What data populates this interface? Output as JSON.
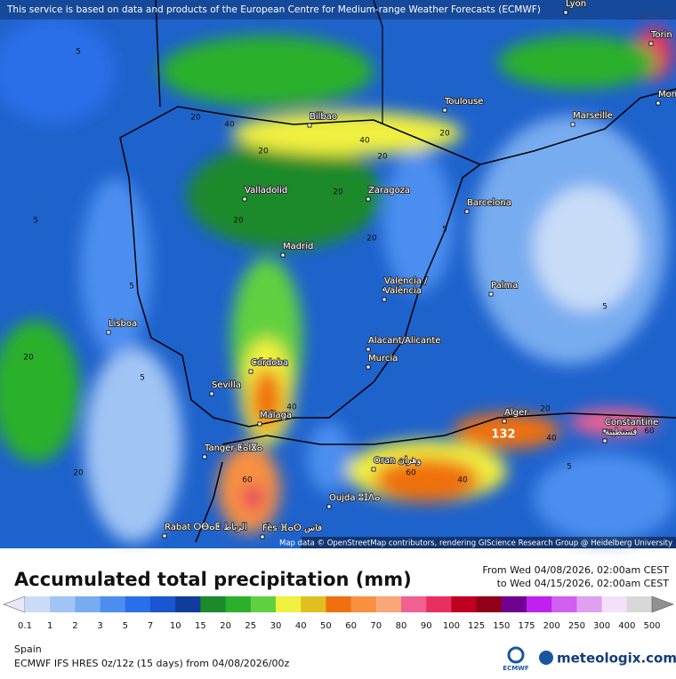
{
  "header": {
    "notice": "This service is based on data and products of the European Centre for Medium-range Weather Forecasts (ECMWF)"
  },
  "map": {
    "cities": [
      "Lyon",
      "Torin",
      "Monaco",
      "Toulouse",
      "Marseille",
      "Bilbao",
      "Valladolid",
      "Zaragoza",
      "Barcelona",
      "Madrid",
      "Valencia /",
      "València",
      "Palma",
      "Lisboa",
      "Alacant/Alicante",
      "Murcia",
      "Córdoba",
      "Sevilla",
      "Málaga",
      "Alger",
      "Constantine",
      "قسنطينة",
      "Tanger ⵟⴰⵏⴵⴰ",
      "Oran وهران",
      "Oujda ⵓⵊⴷⴰ",
      "Rabat ⵔⴱⴰⵟ الرباط",
      "Fès ⴼⴰⵙ فاس"
    ],
    "contour_labels": [
      5,
      5,
      5,
      5,
      5,
      5,
      20,
      20,
      20,
      20,
      20,
      20,
      20,
      40,
      40,
      40,
      40,
      40,
      60,
      60,
      20,
      20,
      5,
      20,
      60
    ],
    "max_label": 132,
    "attribution": "Map data © OpenStreetMap contributors, rendering GIScience Research Group @ Heidelberg University"
  },
  "legend": {
    "title": "Accumulated total precipitation (mm)",
    "from": "From Wed 04/08/2026, 02:00am CEST",
    "to": "to Wed 04/15/2026, 02:00am CEST",
    "labels": [
      0.1,
      1,
      2,
      3,
      5,
      7,
      10,
      15,
      20,
      25,
      30,
      40,
      50,
      60,
      70,
      80,
      90,
      100,
      125,
      150,
      175,
      200,
      250,
      300,
      400,
      500
    ],
    "colors": [
      "#e8e8f8",
      "#c8dcf8",
      "#a0c4f4",
      "#78acf0",
      "#4c8ef0",
      "#2a6ee8",
      "#1a56d0",
      "#103c9c",
      "#1a8a2a",
      "#2cb02c",
      "#60d040",
      "#f0f040",
      "#e0c020",
      "#f07010",
      "#f89040",
      "#f8a878",
      "#f06090",
      "#e83060",
      "#c00020",
      "#900018",
      "#700090",
      "#c020f0",
      "#d060f0",
      "#e0a0f0",
      "#f4e0f8",
      "#d8d8d8",
      "#909090"
    ]
  },
  "footer": {
    "region": "Spain",
    "model": "ECMWF IFS HRES 0z/12z (15 days) from  04/08/2026/00z",
    "ecmwf": "ECMWF",
    "brand": "meteologix.com"
  }
}
